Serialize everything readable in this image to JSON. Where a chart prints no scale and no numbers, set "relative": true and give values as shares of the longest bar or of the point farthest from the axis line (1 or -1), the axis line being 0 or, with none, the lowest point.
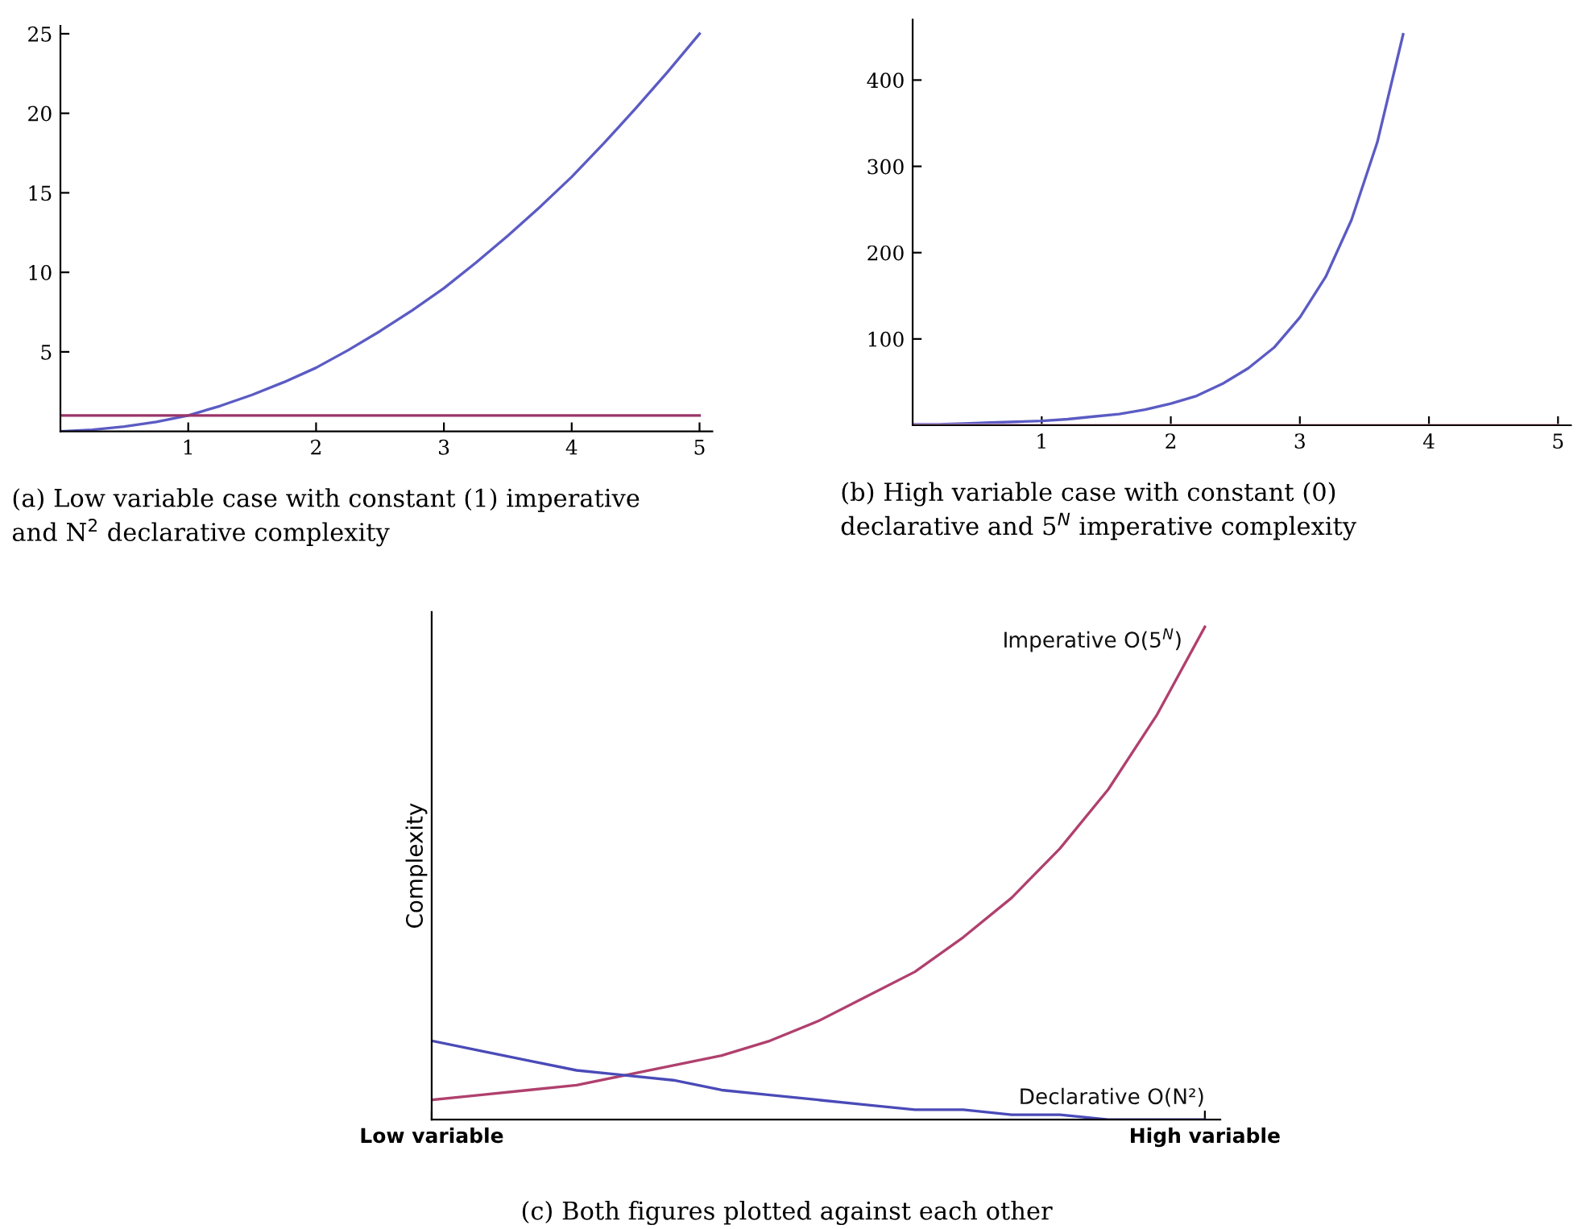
{
  "chart_data": [
    {
      "type": "line",
      "xlim": [
        0,
        5.1
      ],
      "ylim": [
        0,
        25.5
      ],
      "xticks": [
        1,
        2,
        3,
        4,
        5
      ],
      "yticks": [
        5,
        10,
        15,
        20,
        25
      ],
      "grid": false,
      "legend": false,
      "series": [
        {
          "color": "#5b5bc4",
          "x": [
            0,
            0.25,
            0.5,
            0.75,
            1,
            1.25,
            1.5,
            1.75,
            2,
            2.25,
            2.5,
            2.75,
            3,
            3.25,
            3.5,
            3.75,
            4,
            4.25,
            4.5,
            4.75,
            5
          ],
          "values": [
            0,
            0.1,
            0.3,
            0.6,
            1,
            1.6,
            2.3,
            3.1,
            4,
            5.1,
            6.3,
            7.6,
            9,
            10.6,
            12.3,
            14.1,
            16,
            18.1,
            20.3,
            22.6,
            25
          ]
        },
        {
          "color": "#9a3468",
          "x": [
            0,
            5
          ],
          "values": [
            1,
            1
          ]
        }
      ],
      "annotations": [
        "(a) Low variable case with constant (1) imperative and N$^{2}$ declarative complexity"
      ]
    },
    {
      "type": "line",
      "xlim": [
        0,
        5.1
      ],
      "ylim": [
        0,
        470
      ],
      "xticks": [
        1,
        2,
        3,
        4,
        5
      ],
      "yticks": [
        100,
        200,
        300,
        400
      ],
      "grid": false,
      "legend": false,
      "series": [
        {
          "color": "#5b5bc4",
          "x": [
            0,
            0.2,
            0.4,
            0.6,
            0.8,
            1,
            1.2,
            1.4,
            1.6,
            1.8,
            2,
            2.2,
            2.4,
            2.6,
            2.8,
            3,
            3.2,
            3.4,
            3.6,
            3.8
          ],
          "values": [
            1,
            1,
            2,
            3,
            4,
            5,
            7,
            10,
            13,
            18,
            25,
            34,
            48,
            66,
            90,
            125,
            172,
            238,
            328,
            453
          ]
        },
        {
          "color": "#e8a0b8",
          "x": [
            0,
            5
          ],
          "values": [
            0,
            0
          ]
        }
      ],
      "annotations": [
        "(b) High variable case with constant (0) declarative and 5$^{N}$ imperative complexity"
      ]
    },
    {
      "type": "line",
      "relative": true,
      "categories": [
        "Low variable",
        null,
        null,
        null,
        null,
        null,
        null,
        null,
        null,
        null,
        null,
        null,
        null,
        null,
        null,
        null,
        "High variable"
      ],
      "ylabel": "Complexity",
      "grid": false,
      "legend": false,
      "series": [
        {
          "name": "Imperative O(5$^{N}$)",
          "color": "#b0406e",
          "values": [
            0.04,
            0.05,
            0.06,
            0.07,
            0.09,
            0.11,
            0.13,
            0.16,
            0.2,
            0.25,
            0.3,
            0.37,
            0.45,
            0.55,
            0.67,
            0.82,
            1
          ]
        },
        {
          "name": "Declarative O(N²)",
          "color": "#4a4ab8",
          "values": [
            0.16,
            0.14,
            0.12,
            0.1,
            0.09,
            0.08,
            0.06,
            0.05,
            0.04,
            0.03,
            0.02,
            0.02,
            0.01,
            0.01,
            0,
            0,
            0
          ]
        }
      ],
      "annotations": [
        "(c) Both figures plotted against each other"
      ]
    }
  ]
}
